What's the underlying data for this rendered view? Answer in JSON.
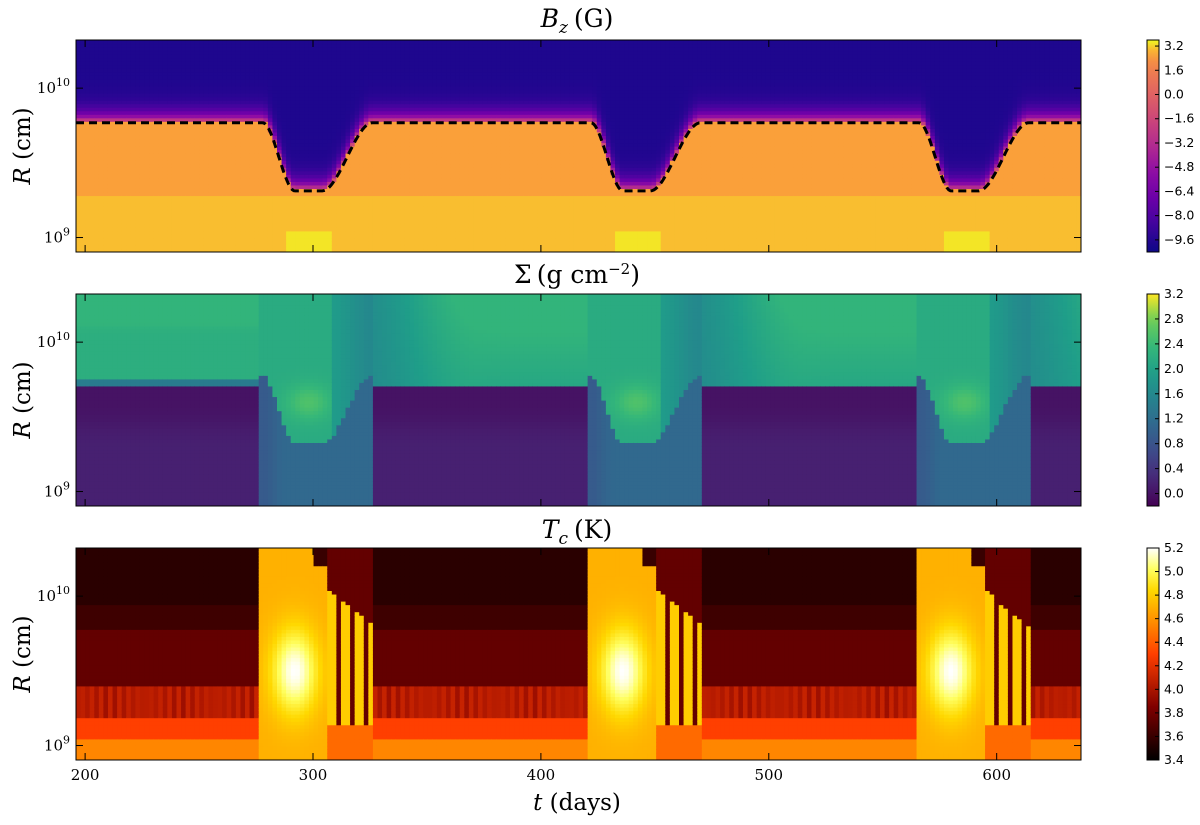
{
  "chart_data": [
    {
      "type": "heatmap",
      "title": "B_z (G)",
      "title_parts": {
        "sym": "B",
        "sub": "z",
        "unit": "(G)"
      },
      "ylabel": "R (cm)",
      "y_scale": "log",
      "x_range": [
        196,
        637
      ],
      "y_range": [
        800000000.0,
        21000000000.0
      ],
      "y_ticks": [
        {
          "value": 1000000000.0,
          "label": "10^9"
        },
        {
          "value": 10000000000.0,
          "label": "10^10"
        }
      ],
      "colorbar": {
        "colormap": "plasma",
        "range": [
          -10.4,
          3.6
        ],
        "ticks": [
          "3.2",
          "1.6",
          "0.0",
          "−1.6",
          "−3.2",
          "−4.8",
          "−6.4",
          "−8.0",
          "−9.6"
        ],
        "tick_values": [
          3.2,
          1.6,
          0.0,
          -1.6,
          -3.2,
          -4.8,
          -6.4,
          -8.0,
          -9.6
        ]
      },
      "outburst_times": [
        278,
        422,
        566
      ],
      "contour": {
        "style": "dashed",
        "color": "#000000",
        "quiescent_radius": 6000000000.0,
        "outburst_min_radius": 2100000000.0
      }
    },
    {
      "type": "heatmap",
      "title": "Σ (g cm^−2)",
      "title_parts": {
        "sym": "Σ",
        "unit_open": "(g cm",
        "sup": "−2",
        "unit_close": ")"
      },
      "ylabel": "R (cm)",
      "y_scale": "log",
      "x_range": [
        196,
        637
      ],
      "y_range": [
        800000000.0,
        21000000000.0
      ],
      "y_ticks": [
        {
          "value": 1000000000.0,
          "label": "10^9"
        },
        {
          "value": 10000000000.0,
          "label": "10^10"
        }
      ],
      "colorbar": {
        "colormap": "viridis",
        "range": [
          -0.2,
          3.2
        ],
        "ticks": [
          "3.2",
          "2.8",
          "2.4",
          "2.0",
          "1.6",
          "1.2",
          "0.8",
          "0.4",
          "0.0"
        ],
        "tick_values": [
          3.2,
          2.8,
          2.4,
          2.0,
          1.6,
          1.2,
          0.8,
          0.4,
          0.0
        ]
      },
      "outburst_times": [
        278,
        422,
        566
      ]
    },
    {
      "type": "heatmap",
      "title": "T_c (K)",
      "title_parts": {
        "sym": "T",
        "sub": "c",
        "unit": "(K)"
      },
      "ylabel": "R (cm)",
      "xlabel": "t (days)",
      "y_scale": "log",
      "x_range": [
        196,
        637
      ],
      "x_ticks": [
        200,
        300,
        400,
        500,
        600
      ],
      "y_range": [
        800000000.0,
        21000000000.0
      ],
      "y_ticks": [
        {
          "value": 1000000000.0,
          "label": "10^9"
        },
        {
          "value": 10000000000.0,
          "label": "10^10"
        }
      ],
      "colorbar": {
        "colormap": "afmhot",
        "range": [
          3.4,
          5.2
        ],
        "ticks": [
          "5.2",
          "5.0",
          "4.8",
          "4.6",
          "4.4",
          "4.2",
          "4.0",
          "3.8",
          "3.6",
          "3.4"
        ],
        "tick_values": [
          5.2,
          5.0,
          4.8,
          4.6,
          4.4,
          4.2,
          4.0,
          3.8,
          3.6,
          3.4
        ]
      },
      "outburst_times": [
        278,
        422,
        566
      ]
    }
  ]
}
